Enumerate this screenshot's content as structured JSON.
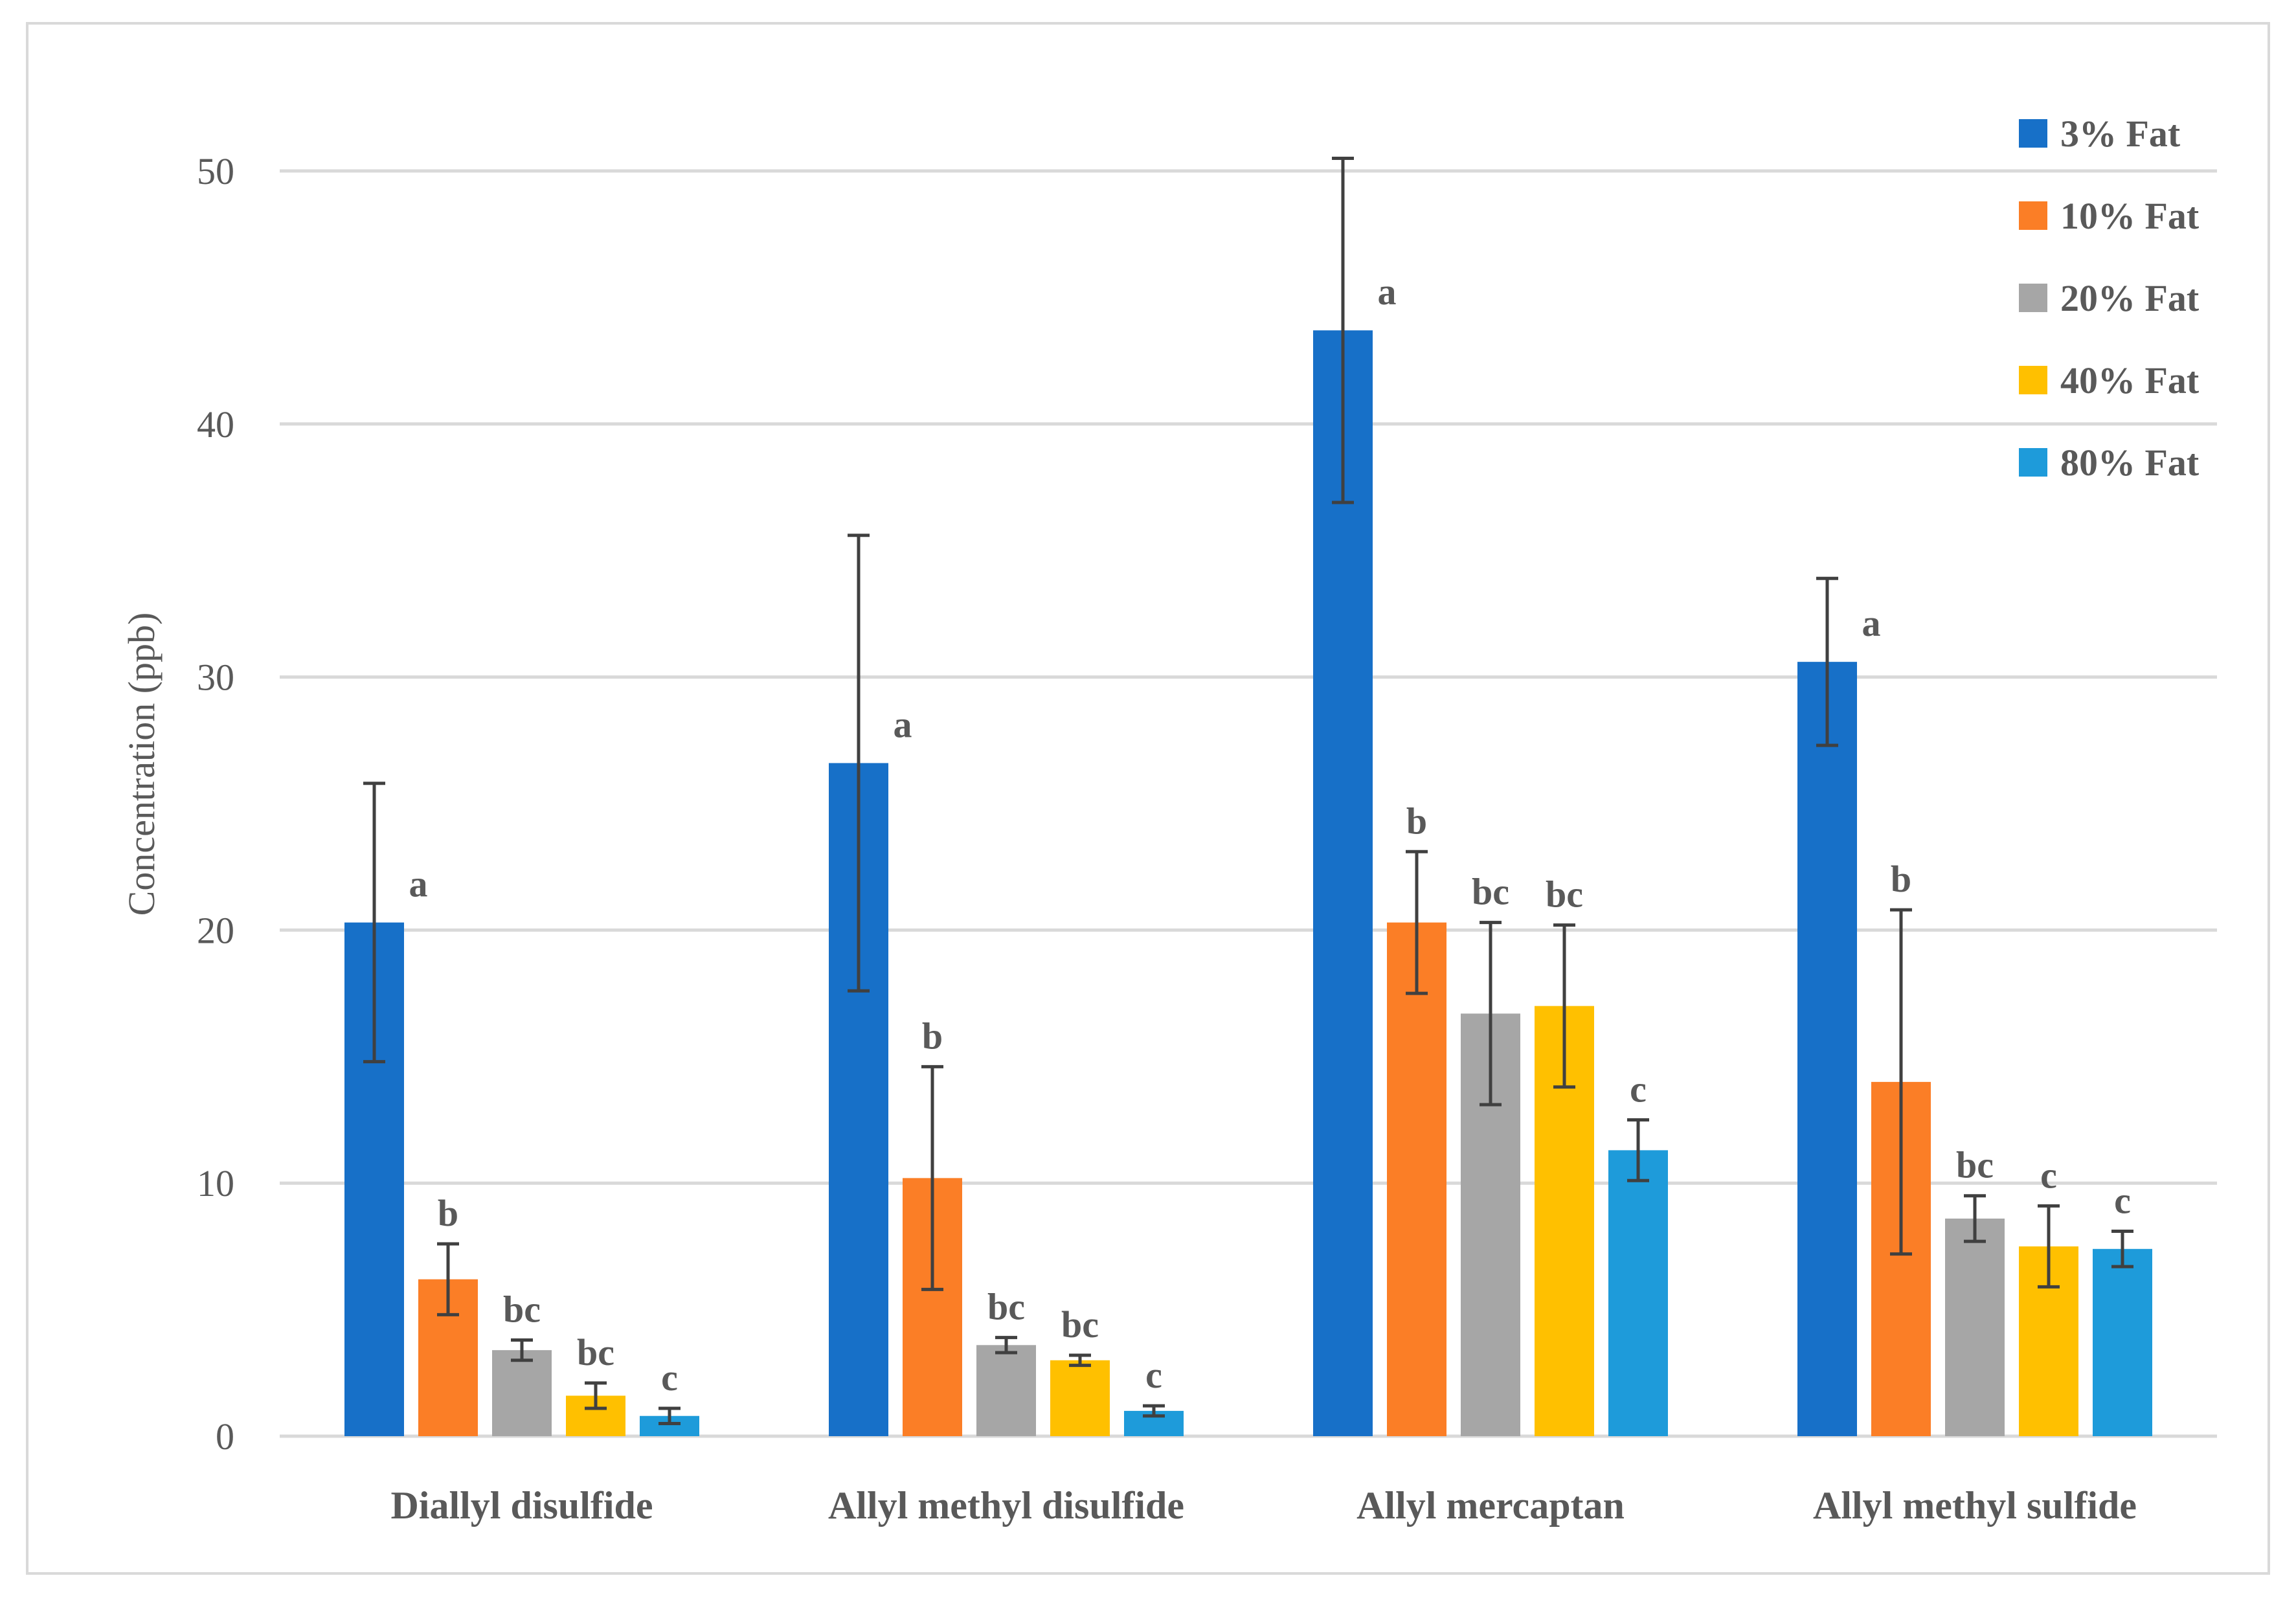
{
  "chart_data": {
    "type": "bar",
    "ylabel": "Concentration (ppb)",
    "xlabel": "",
    "ylim": [
      0,
      50
    ],
    "yticks": [
      "0",
      "10",
      "20",
      "30",
      "40",
      "50"
    ],
    "grid": true,
    "legend_position": "top-right",
    "categories": [
      "Diallyl disulfide",
      "Allyl methyl disulfide",
      "Allyl mercaptan",
      "Allyl methyl sulfide"
    ],
    "series": [
      {
        "name": "3% Fat",
        "color": "#1770C8",
        "values": [
          20.3,
          26.6,
          43.7,
          30.6
        ],
        "errors": [
          5.5,
          9.0,
          6.8,
          3.3
        ],
        "letters": [
          "a",
          "a",
          "a",
          "a"
        ]
      },
      {
        "name": "10% Fat",
        "color": "#FB7E26",
        "values": [
          6.2,
          10.2,
          20.3,
          14.0
        ],
        "errors": [
          1.4,
          4.4,
          2.8,
          6.8
        ],
        "letters": [
          "b",
          "b",
          "b",
          "b"
        ]
      },
      {
        "name": "20% Fat",
        "color": "#A6A6A6",
        "values": [
          3.4,
          3.6,
          16.7,
          8.6
        ],
        "errors": [
          0.4,
          0.3,
          3.6,
          0.9
        ],
        "letters": [
          "bc",
          "bc",
          "bc",
          "bc"
        ]
      },
      {
        "name": "40% Fat",
        "color": "#FFC000",
        "values": [
          1.6,
          3.0,
          17.0,
          7.5
        ],
        "errors": [
          0.5,
          0.2,
          3.2,
          1.6
        ],
        "letters": [
          "bc",
          "bc",
          "bc",
          "c"
        ]
      },
      {
        "name": "80% Fat",
        "color": "#1E9BDA",
        "values": [
          0.8,
          1.0,
          11.3,
          7.4
        ],
        "errors": [
          0.3,
          0.2,
          1.2,
          0.7
        ],
        "letters": [
          "c",
          "c",
          "c",
          "c"
        ]
      }
    ]
  }
}
